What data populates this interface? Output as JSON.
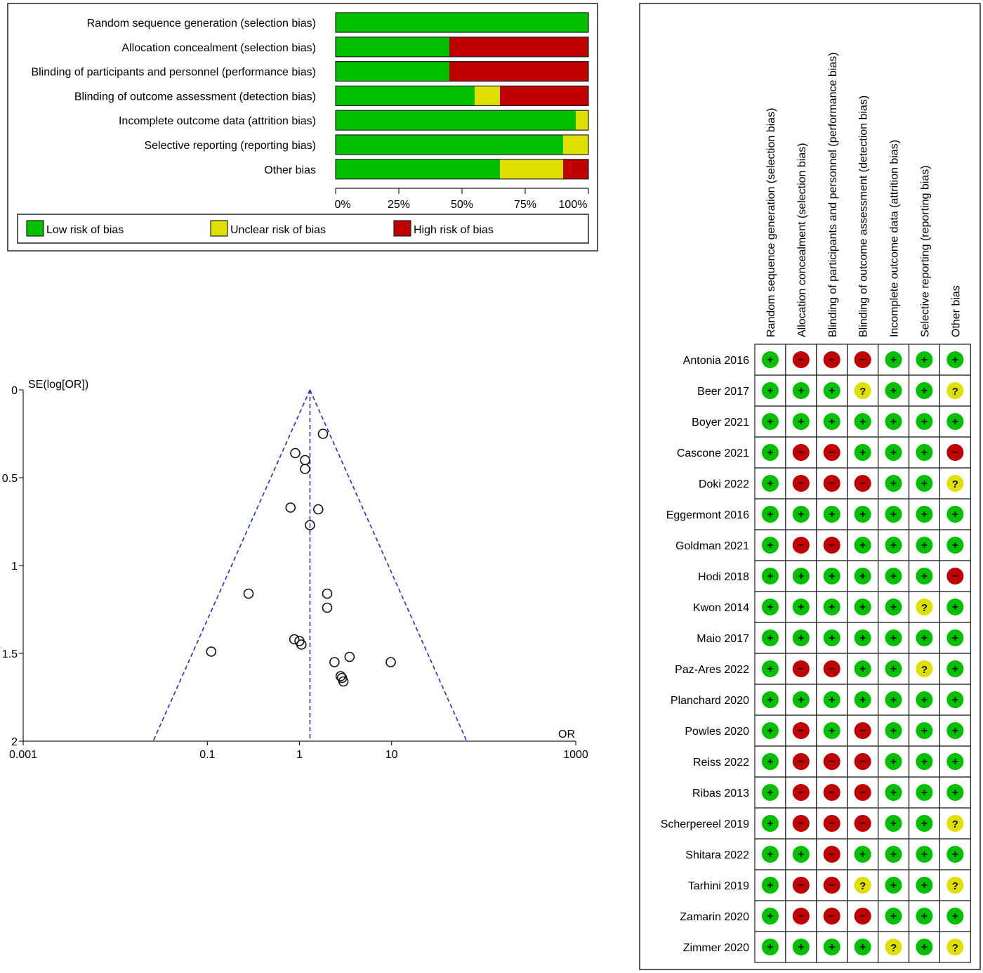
{
  "chart_data": [
    {
      "type": "bar",
      "subtype": "stacked-percent",
      "categories": [
        "Random sequence generation (selection bias)",
        "Allocation concealment (selection bias)",
        "Blinding of participants and personnel (performance bias)",
        "Blinding of outcome assessment (detection bias)",
        "Incomplete outcome data (attrition bias)",
        "Selective reporting (reporting bias)",
        "Other bias"
      ],
      "series": [
        {
          "name": "Low risk of bias",
          "color": "#00c000",
          "values": [
            100,
            45,
            45,
            55,
            95,
            90,
            65
          ]
        },
        {
          "name": "Unclear risk of bias",
          "color": "#e0e000",
          "values": [
            0,
            0,
            0,
            10,
            5,
            10,
            25
          ]
        },
        {
          "name": "High risk of bias",
          "color": "#c00000",
          "values": [
            0,
            55,
            55,
            35,
            0,
            0,
            10
          ]
        }
      ],
      "xlim": [
        0,
        100
      ],
      "xticks": [
        "0%",
        "25%",
        "50%",
        "75%",
        "100%"
      ],
      "legend": "bottom"
    },
    {
      "type": "scatter",
      "subtype": "funnel",
      "ylabel": "SE(log[OR])",
      "xlabel": "OR",
      "x_scale": "log",
      "xlim": [
        0.001,
        1000
      ],
      "xticks": [
        "0.001",
        "0.1",
        "1",
        "10",
        "1000"
      ],
      "ylim": [
        0,
        2
      ],
      "y_inverted": true,
      "yticks": [
        "0",
        "0.5",
        "1",
        "1.5",
        "2"
      ],
      "pooled_or": 1.3,
      "points": [
        {
          "x": 1.8,
          "y": 0.25
        },
        {
          "x": 0.9,
          "y": 0.36
        },
        {
          "x": 1.15,
          "y": 0.4
        },
        {
          "x": 1.15,
          "y": 0.45
        },
        {
          "x": 0.8,
          "y": 0.67
        },
        {
          "x": 1.6,
          "y": 0.68
        },
        {
          "x": 1.3,
          "y": 0.77
        },
        {
          "x": 0.28,
          "y": 1.16
        },
        {
          "x": 2.0,
          "y": 1.16
        },
        {
          "x": 2.0,
          "y": 1.24
        },
        {
          "x": 0.88,
          "y": 1.42
        },
        {
          "x": 1.0,
          "y": 1.43
        },
        {
          "x": 1.05,
          "y": 1.45
        },
        {
          "x": 0.11,
          "y": 1.49
        },
        {
          "x": 3.5,
          "y": 1.52
        },
        {
          "x": 2.4,
          "y": 1.55
        },
        {
          "x": 9.8,
          "y": 1.55
        },
        {
          "x": 2.8,
          "y": 1.63
        },
        {
          "x": 2.9,
          "y": 1.64
        },
        {
          "x": 3.0,
          "y": 1.66
        }
      ]
    },
    {
      "type": "table",
      "subtype": "risk-of-bias-matrix",
      "columns": [
        "Random sequence generation (selection bias)",
        "Allocation concealment (selection bias)",
        "Blinding of participants and personnel (performance bias)",
        "Blinding of outcome assessment (detection bias)",
        "Incomplete outcome data (attrition bias)",
        "Selective reporting (reporting bias)",
        "Other bias"
      ],
      "symbols": {
        "low": "+",
        "high": "−",
        "unclear": "?"
      },
      "colors": {
        "low": "#00c000",
        "high": "#c00000",
        "unclear": "#e0e000"
      },
      "rows": [
        {
          "study": "Antonia 2016",
          "ratings": [
            "low",
            "high",
            "high",
            "high",
            "low",
            "low",
            "low"
          ]
        },
        {
          "study": "Beer 2017",
          "ratings": [
            "low",
            "low",
            "low",
            "unclear",
            "low",
            "low",
            "unclear"
          ]
        },
        {
          "study": "Boyer 2021",
          "ratings": [
            "low",
            "low",
            "low",
            "low",
            "low",
            "low",
            "low"
          ]
        },
        {
          "study": "Cascone 2021",
          "ratings": [
            "low",
            "high",
            "high",
            "low",
            "low",
            "low",
            "high"
          ]
        },
        {
          "study": "Doki 2022",
          "ratings": [
            "low",
            "high",
            "high",
            "high",
            "low",
            "low",
            "unclear"
          ]
        },
        {
          "study": "Eggermont 2016",
          "ratings": [
            "low",
            "low",
            "low",
            "low",
            "low",
            "low",
            "low"
          ]
        },
        {
          "study": "Goldman 2021",
          "ratings": [
            "low",
            "high",
            "high",
            "low",
            "low",
            "low",
            "low"
          ]
        },
        {
          "study": "Hodi 2018",
          "ratings": [
            "low",
            "low",
            "low",
            "low",
            "low",
            "low",
            "high"
          ]
        },
        {
          "study": "Kwon 2014",
          "ratings": [
            "low",
            "low",
            "low",
            "low",
            "low",
            "unclear",
            "low"
          ]
        },
        {
          "study": "Maio 2017",
          "ratings": [
            "low",
            "low",
            "low",
            "low",
            "low",
            "low",
            "low"
          ]
        },
        {
          "study": "Paz-Ares 2022",
          "ratings": [
            "low",
            "high",
            "high",
            "low",
            "low",
            "unclear",
            "low"
          ]
        },
        {
          "study": "Planchard 2020",
          "ratings": [
            "low",
            "low",
            "low",
            "low",
            "low",
            "low",
            "low"
          ]
        },
        {
          "study": "Powles 2020",
          "ratings": [
            "low",
            "high",
            "low",
            "high",
            "low",
            "low",
            "low"
          ]
        },
        {
          "study": "Reiss 2022",
          "ratings": [
            "low",
            "high",
            "high",
            "high",
            "low",
            "low",
            "low"
          ]
        },
        {
          "study": "Ribas 2013",
          "ratings": [
            "low",
            "high",
            "high",
            "high",
            "low",
            "low",
            "low"
          ]
        },
        {
          "study": "Scherpereel 2019",
          "ratings": [
            "low",
            "high",
            "high",
            "high",
            "low",
            "low",
            "unclear"
          ]
        },
        {
          "study": "Shitara 2022",
          "ratings": [
            "low",
            "low",
            "high",
            "low",
            "low",
            "low",
            "low"
          ]
        },
        {
          "study": "Tarhini 2019",
          "ratings": [
            "low",
            "high",
            "high",
            "unclear",
            "low",
            "low",
            "unclear"
          ]
        },
        {
          "study": "Zamarin 2020",
          "ratings": [
            "low",
            "high",
            "high",
            "high",
            "low",
            "low",
            "low"
          ]
        },
        {
          "study": "Zimmer 2020",
          "ratings": [
            "low",
            "low",
            "low",
            "low",
            "unclear",
            "low",
            "unclear"
          ]
        }
      ]
    }
  ]
}
